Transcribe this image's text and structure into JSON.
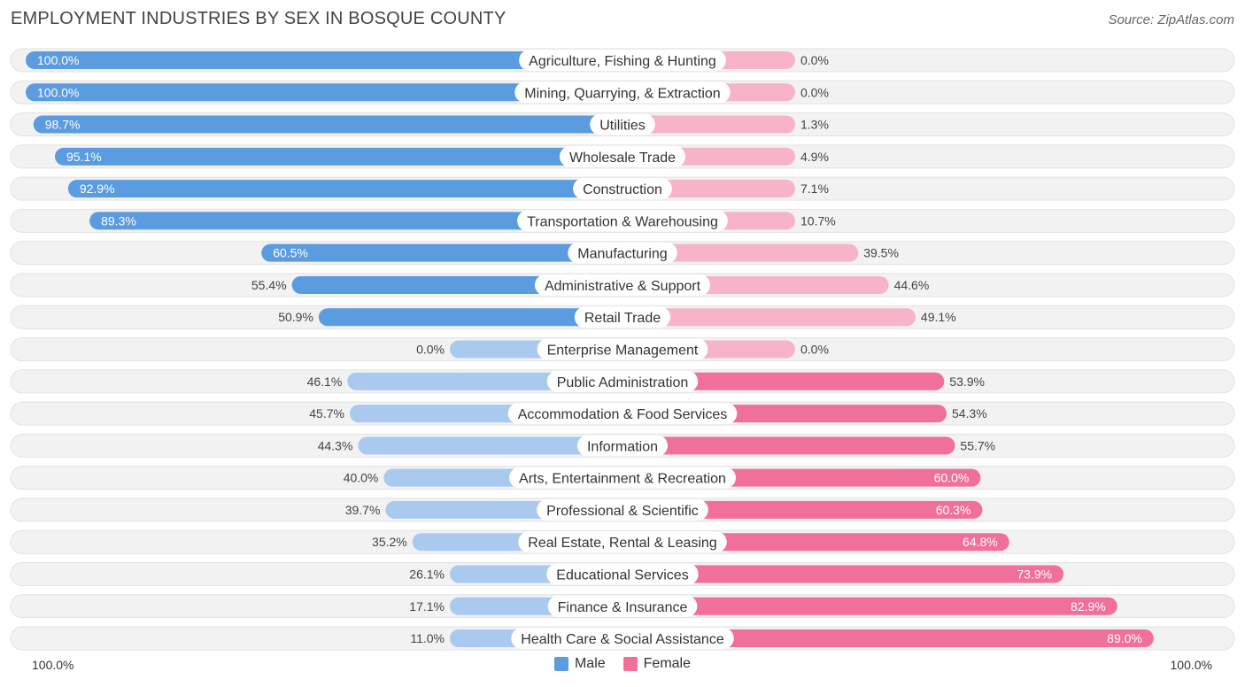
{
  "title": "EMPLOYMENT INDUSTRIES BY SEX IN BOSQUE COUNTY",
  "source": "Source: ZipAtlas.com",
  "legend": {
    "male": "Male",
    "female": "Female"
  },
  "axis": {
    "left": "100.0%",
    "right": "100.0%"
  },
  "colors": {
    "male_strong": "#5b9be0",
    "male_light": "#a9c9ee",
    "female_strong": "#f0709a",
    "female_light": "#f7b3c8",
    "row_bg": "#f2f2f2"
  },
  "chart_data": {
    "type": "bar",
    "orientation": "horizontal-diverging",
    "title": "EMPLOYMENT INDUSTRIES BY SEX IN BOSQUE COUNTY",
    "xlim": [
      0,
      100
    ],
    "categories": [
      "Agriculture, Fishing & Hunting",
      "Mining, Quarrying, & Extraction",
      "Utilities",
      "Wholesale Trade",
      "Construction",
      "Transportation & Warehousing",
      "Manufacturing",
      "Administrative & Support",
      "Retail Trade",
      "Enterprise Management",
      "Public Administration",
      "Accommodation & Food Services",
      "Information",
      "Arts, Entertainment & Recreation",
      "Professional & Scientific",
      "Real Estate, Rental & Leasing",
      "Educational Services",
      "Finance & Insurance",
      "Health Care & Social Assistance"
    ],
    "series": [
      {
        "name": "Male",
        "values": [
          100.0,
          100.0,
          98.7,
          95.1,
          92.9,
          89.3,
          60.5,
          55.4,
          50.9,
          0.0,
          46.1,
          45.7,
          44.3,
          40.0,
          39.7,
          35.2,
          26.1,
          17.1,
          11.0
        ],
        "labels": [
          "100.0%",
          "100.0%",
          "98.7%",
          "95.1%",
          "92.9%",
          "89.3%",
          "60.5%",
          "55.4%",
          "50.9%",
          "0.0%",
          "46.1%",
          "45.7%",
          "44.3%",
          "40.0%",
          "39.7%",
          "35.2%",
          "26.1%",
          "17.1%",
          "11.0%"
        ]
      },
      {
        "name": "Female",
        "values": [
          0.0,
          0.0,
          1.3,
          4.9,
          7.1,
          10.7,
          39.5,
          44.6,
          49.1,
          0.0,
          53.9,
          54.3,
          55.7,
          60.0,
          60.3,
          64.8,
          73.9,
          82.9,
          89.0
        ],
        "labels": [
          "0.0%",
          "0.0%",
          "1.3%",
          "4.9%",
          "7.1%",
          "10.7%",
          "39.5%",
          "44.6%",
          "49.1%",
          "0.0%",
          "53.9%",
          "54.3%",
          "55.7%",
          "60.0%",
          "60.3%",
          "64.8%",
          "73.9%",
          "82.9%",
          "89.0%"
        ]
      }
    ]
  }
}
